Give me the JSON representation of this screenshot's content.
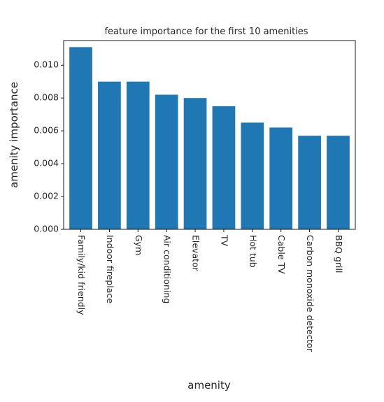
{
  "chart_data": {
    "type": "bar",
    "title": "feature importance for the first 10 amenities",
    "xlabel": "amenity",
    "ylabel": "amenity importance",
    "categories": [
      "Family/kid friendly",
      "Indoor fireplace",
      "Gym",
      "Air conditioning",
      "Elevator",
      "TV",
      "Hot tub",
      "Cable TV",
      "Carbon monoxide detector",
      "BBQ grill"
    ],
    "values": [
      0.0111,
      0.009,
      0.009,
      0.0082,
      0.008,
      0.0075,
      0.0065,
      0.0062,
      0.0057,
      0.0057
    ],
    "ylim": [
      0,
      0.0115
    ],
    "yticks": [
      0.0,
      0.002,
      0.004,
      0.006,
      0.008,
      0.01
    ],
    "ytick_labels": [
      "0.000",
      "0.002",
      "0.004",
      "0.006",
      "0.008",
      "0.010"
    ],
    "bar_color": "#1f77b4",
    "grid": false,
    "legend": "none"
  }
}
